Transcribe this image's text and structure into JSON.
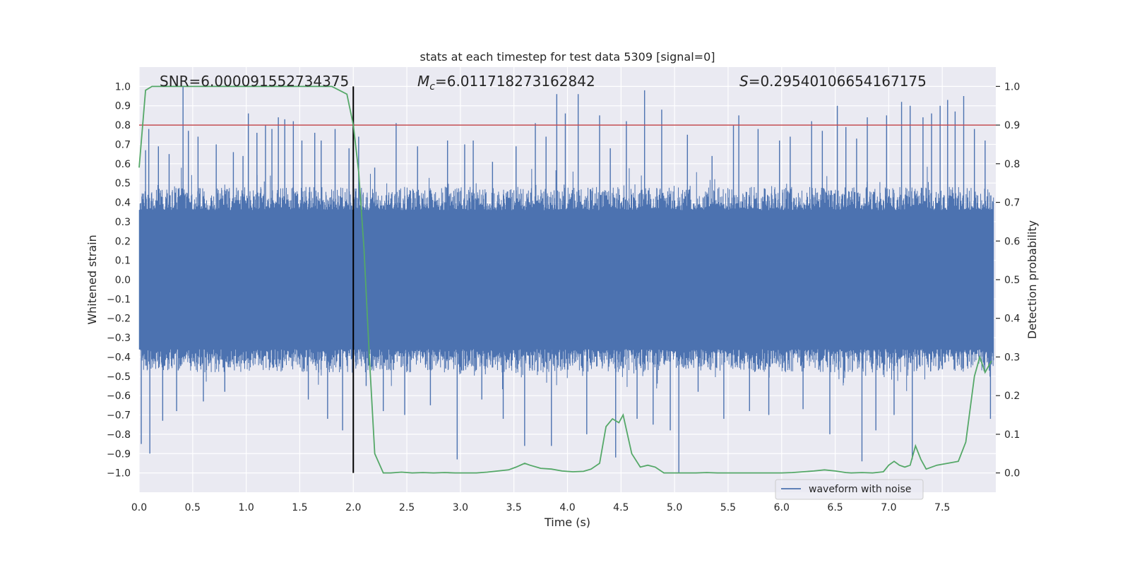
{
  "chart_data": {
    "type": "line",
    "title": "stats at each timestep for test data 5309 [signal=0]",
    "xlabel": "Time (s)",
    "ylabel_left": "Whitened strain",
    "ylabel_right": "Detection probability",
    "xlim": [
      0.0,
      8.0
    ],
    "ylim_left": [
      -1.1,
      1.1
    ],
    "ylim_right": [
      -0.05,
      1.05
    ],
    "x_ticks": [
      0.0,
      0.5,
      1.0,
      1.5,
      2.0,
      2.5,
      3.0,
      3.5,
      4.0,
      4.5,
      5.0,
      5.5,
      6.0,
      6.5,
      7.0,
      7.5
    ],
    "x_tick_labels": [
      "0.0",
      "0.5",
      "1.0",
      "1.5",
      "2.0",
      "2.5",
      "3.0",
      "3.5",
      "4.0",
      "4.5",
      "5.0",
      "5.5",
      "6.0",
      "6.5",
      "7.0",
      "7.5"
    ],
    "y_ticks_left": [
      1.0,
      0.9,
      0.8,
      0.7,
      0.6,
      0.5,
      0.4,
      0.3,
      0.2,
      0.1,
      0.0,
      -0.1,
      -0.2,
      -0.3,
      -0.4,
      -0.5,
      -0.6,
      -0.7,
      -0.8,
      -0.9,
      -1.0
    ],
    "y_tick_labels_left": [
      "1.0",
      "0.9",
      "0.8",
      "0.7",
      "0.6",
      "0.5",
      "0.4",
      "0.3",
      "0.2",
      "0.1",
      "0.0",
      "−0.1",
      "−0.2",
      "−0.3",
      "−0.4",
      "−0.5",
      "−0.6",
      "−0.7",
      "−0.8",
      "−0.9",
      "−1.0"
    ],
    "y_ticks_right": [
      1.0,
      0.9,
      0.8,
      0.7,
      0.6,
      0.5,
      0.4,
      0.3,
      0.2,
      0.1,
      0.0
    ],
    "y_tick_labels_right": [
      "1.0",
      "0.9",
      "0.8",
      "0.7",
      "0.6",
      "0.5",
      "0.4",
      "0.3",
      "0.2",
      "0.1",
      "0.0"
    ],
    "grid": true,
    "legend": {
      "label": "waveform with noise",
      "placement": "lower-right"
    },
    "annotations": {
      "snr": "SNR=6.000091552734375",
      "mc_symbol": "M",
      "mc_subscript": "c",
      "mc_value": "=6.011718273162842",
      "s_symbol": "S",
      "s_value": "=0.29540106654167175"
    },
    "threshold": {
      "value": 0.9,
      "axis": "right",
      "color": "#c44e52"
    },
    "vertical_marker": {
      "x": 2.0,
      "y_range": [
        -1.0,
        1.0
      ],
      "color": "#000000"
    },
    "series": [
      {
        "name": "waveform with noise",
        "axis": "left",
        "color": "#4c72b0",
        "style": "dense-noise",
        "spikes": [
          [
            0.02,
            -0.85
          ],
          [
            0.06,
            0.67
          ],
          [
            0.09,
            0.78
          ],
          [
            0.1,
            -0.9
          ],
          [
            0.18,
            0.69
          ],
          [
            0.22,
            -0.73
          ],
          [
            0.28,
            0.65
          ],
          [
            0.35,
            -0.68
          ],
          [
            0.41,
            1.0
          ],
          [
            0.46,
            0.77
          ],
          [
            0.55,
            0.74
          ],
          [
            0.6,
            -0.63
          ],
          [
            0.72,
            0.7
          ],
          [
            0.8,
            -0.58
          ],
          [
            0.88,
            0.66
          ],
          [
            0.97,
            0.64
          ],
          [
            1.02,
            0.86
          ],
          [
            1.1,
            0.76
          ],
          [
            1.18,
            0.8
          ],
          [
            1.24,
            0.78
          ],
          [
            1.3,
            0.84
          ],
          [
            1.36,
            0.83
          ],
          [
            1.44,
            0.82
          ],
          [
            1.52,
            0.72
          ],
          [
            1.58,
            -0.62
          ],
          [
            1.64,
            0.76
          ],
          [
            1.7,
            0.72
          ],
          [
            1.76,
            -0.72
          ],
          [
            1.83,
            0.78
          ],
          [
            1.9,
            -0.78
          ],
          [
            1.96,
            0.68
          ],
          [
            2.05,
            0.74
          ],
          [
            2.12,
            -0.55
          ],
          [
            2.2,
            0.58
          ],
          [
            2.28,
            -0.68
          ],
          [
            2.4,
            0.81
          ],
          [
            2.48,
            -0.7
          ],
          [
            2.6,
            0.69
          ],
          [
            2.72,
            -0.65
          ],
          [
            2.88,
            0.72
          ],
          [
            2.97,
            -0.93
          ],
          [
            3.04,
            0.7
          ],
          [
            3.12,
            0.72
          ],
          [
            3.2,
            -0.62
          ],
          [
            3.3,
            0.61
          ],
          [
            3.4,
            -0.72
          ],
          [
            3.52,
            0.69
          ],
          [
            3.6,
            -0.86
          ],
          [
            3.7,
            0.81
          ],
          [
            3.8,
            0.74
          ],
          [
            3.85,
            -0.86
          ],
          [
            3.9,
            0.96
          ],
          [
            3.98,
            0.86
          ],
          [
            4.1,
            0.96
          ],
          [
            4.18,
            -0.8
          ],
          [
            4.3,
            0.85
          ],
          [
            4.4,
            0.68
          ],
          [
            4.45,
            -0.92
          ],
          [
            4.55,
            0.82
          ],
          [
            4.65,
            -0.72
          ],
          [
            4.72,
            0.98
          ],
          [
            4.8,
            -0.75
          ],
          [
            4.88,
            0.88
          ],
          [
            4.96,
            -0.78
          ],
          [
            5.04,
            -1.0
          ],
          [
            5.12,
            0.75
          ],
          [
            5.22,
            -0.58
          ],
          [
            5.35,
            0.64
          ],
          [
            5.46,
            -0.72
          ],
          [
            5.55,
            0.8
          ],
          [
            5.6,
            0.85
          ],
          [
            5.7,
            -0.68
          ],
          [
            5.78,
            0.78
          ],
          [
            5.88,
            -0.7
          ],
          [
            5.98,
            0.72
          ],
          [
            6.08,
            0.74
          ],
          [
            6.2,
            -0.67
          ],
          [
            6.28,
            0.82
          ],
          [
            6.38,
            0.77
          ],
          [
            6.45,
            -0.8
          ],
          [
            6.52,
            0.9
          ],
          [
            6.6,
            0.79
          ],
          [
            6.7,
            0.73
          ],
          [
            6.75,
            -0.94
          ],
          [
            6.8,
            0.84
          ],
          [
            6.88,
            -0.78
          ],
          [
            6.98,
            0.85
          ],
          [
            7.05,
            -0.7
          ],
          [
            7.12,
            0.92
          ],
          [
            7.2,
            0.9
          ],
          [
            7.22,
            -0.93
          ],
          [
            7.32,
            0.84
          ],
          [
            7.4,
            0.86
          ],
          [
            7.48,
            0.9
          ],
          [
            7.55,
            0.93
          ],
          [
            7.62,
            0.87
          ],
          [
            7.7,
            0.95
          ],
          [
            7.8,
            0.78
          ],
          [
            7.9,
            0.72
          ],
          [
            7.95,
            -0.72
          ]
        ]
      },
      {
        "name": "",
        "axis": "right",
        "color": "#55a868",
        "x": [
          0.0,
          0.06,
          0.12,
          0.2,
          0.4,
          0.6,
          0.8,
          1.0,
          1.2,
          1.4,
          1.6,
          1.8,
          1.94,
          2.0,
          2.05,
          2.1,
          2.15,
          2.2,
          2.28,
          2.35,
          2.45,
          2.55,
          2.65,
          2.75,
          2.85,
          2.95,
          3.05,
          3.15,
          3.25,
          3.35,
          3.45,
          3.52,
          3.6,
          3.65,
          3.75,
          3.85,
          3.95,
          4.05,
          4.15,
          4.22,
          4.3,
          4.36,
          4.42,
          4.48,
          4.52,
          4.6,
          4.68,
          4.75,
          4.82,
          4.9,
          5.0,
          5.1,
          5.2,
          5.3,
          5.4,
          5.5,
          5.6,
          5.75,
          5.9,
          6.0,
          6.1,
          6.2,
          6.3,
          6.4,
          6.5,
          6.6,
          6.65,
          6.75,
          6.85,
          6.95,
          7.0,
          7.05,
          7.1,
          7.15,
          7.2,
          7.25,
          7.3,
          7.35,
          7.45,
          7.55,
          7.65,
          7.72,
          7.8,
          7.85,
          7.9,
          7.96
        ],
        "y": [
          0.79,
          0.99,
          1.0,
          1.0,
          1.0,
          1.0,
          1.0,
          1.0,
          1.0,
          1.0,
          1.0,
          1.0,
          0.98,
          0.9,
          0.78,
          0.58,
          0.3,
          0.05,
          0.0,
          0.0,
          0.002,
          0.0,
          0.001,
          0.0,
          0.001,
          0.0,
          0.0,
          0.0,
          0.002,
          0.005,
          0.008,
          0.015,
          0.025,
          0.02,
          0.012,
          0.01,
          0.005,
          0.003,
          0.004,
          0.01,
          0.025,
          0.12,
          0.14,
          0.13,
          0.15,
          0.05,
          0.015,
          0.02,
          0.015,
          0.0,
          0.0,
          0.0,
          0.0,
          0.001,
          0.0,
          0.0,
          0.0,
          0.0,
          0.0,
          0.0,
          0.001,
          0.003,
          0.005,
          0.008,
          0.005,
          0.001,
          0.0,
          0.001,
          0.0,
          0.003,
          0.02,
          0.03,
          0.02,
          0.015,
          0.02,
          0.07,
          0.035,
          0.01,
          0.02,
          0.025,
          0.03,
          0.08,
          0.25,
          0.3,
          0.26,
          0.29
        ]
      }
    ]
  }
}
